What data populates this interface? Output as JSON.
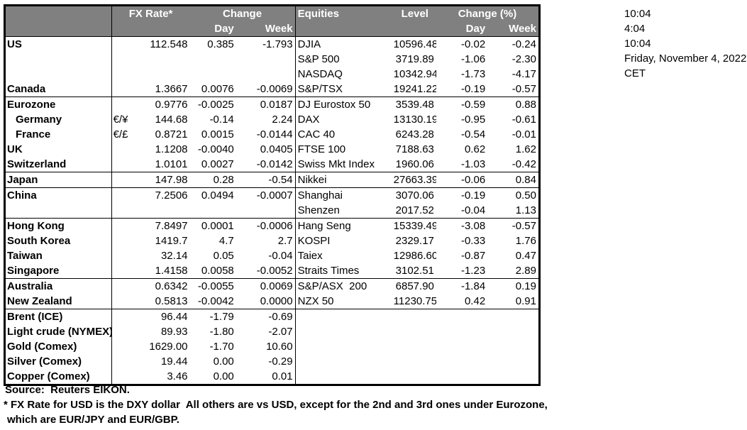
{
  "colors": {
    "header_bg": "#808080",
    "header_text": "#ffffff",
    "border": "#000000",
    "body_text": "#000000",
    "page_bg": "#ffffff"
  },
  "table": {
    "header": {
      "fx_rate": "FX Rate*",
      "change": "Change",
      "day": "Day",
      "week": "Week",
      "equities": "Equities",
      "level": "Level",
      "change_pct": "Change (%)",
      "eq_day": "Day",
      "eq_week": "Week"
    },
    "rows": [
      {
        "name": "US",
        "pair": "",
        "rate": "112.548",
        "day": "0.385",
        "week": "-1.793",
        "eq": "DJIA",
        "level": "10596.48",
        "eq_day": "-0.02",
        "eq_week": "-0.24"
      },
      {
        "name": "",
        "pair": "",
        "rate": "",
        "day": "",
        "week": "",
        "eq": "S&P 500",
        "level": "3719.89",
        "eq_day": "-1.06",
        "eq_week": "-2.30"
      },
      {
        "name": "",
        "pair": "",
        "rate": "",
        "day": "",
        "week": "",
        "eq": "NASDAQ",
        "level": "10342.94",
        "eq_day": "-1.73",
        "eq_week": "-4.17"
      },
      {
        "name": "Canada",
        "pair": "",
        "rate": "1.3667",
        "day": "0.0076",
        "week": "-0.0069",
        "eq": "S&P/TSX",
        "level": "19241.22",
        "eq_day": "-0.19",
        "eq_week": "-0.57",
        "sep": true
      },
      {
        "name": "Eurozone",
        "pair": "",
        "rate": "0.9776",
        "day": "-0.0025",
        "week": "0.0187",
        "eq": "DJ Eurostox 50",
        "level": "3539.48",
        "eq_day": "-0.59",
        "eq_week": "0.88"
      },
      {
        "name": "Germany",
        "indent": true,
        "pair": "€/¥",
        "rate": "144.68",
        "day": "-0.14",
        "week": "2.24",
        "eq": "DAX",
        "level": "13130.19",
        "eq_day": "-0.95",
        "eq_week": "-0.61"
      },
      {
        "name": "France",
        "indent": true,
        "pair": "€/£",
        "rate": "0.8721",
        "day": "0.0015",
        "week": "-0.0144",
        "eq": "CAC 40",
        "level": "6243.28",
        "eq_day": "-0.54",
        "eq_week": "-0.01"
      },
      {
        "name": "UK",
        "pair": "",
        "rate": "1.1208",
        "day": "-0.0040",
        "week": "0.0405",
        "eq": "FTSE 100",
        "level": "7188.63",
        "eq_day": "0.62",
        "eq_week": "1.62"
      },
      {
        "name": "Switzerland",
        "pair": "",
        "rate": "1.0101",
        "day": "0.0027",
        "week": "-0.0142",
        "eq": "Swiss Mkt Index",
        "level": "1960.06",
        "eq_day": "-1.03",
        "eq_week": "-0.42",
        "sep": true
      },
      {
        "name": "Japan",
        "pair": "",
        "rate": "147.98",
        "day": "0.28",
        "week": "-0.54",
        "eq": "Nikkei",
        "level": "27663.39",
        "eq_day": "-0.06",
        "eq_week": "0.84",
        "sep": true
      },
      {
        "name": "China",
        "pair": "",
        "rate": "7.2506",
        "day": "0.0494",
        "week": "-0.0007",
        "eq": "Shanghai",
        "level": "3070.06",
        "eq_day": "-0.19",
        "eq_week": "0.50"
      },
      {
        "name": "",
        "pair": "",
        "rate": "",
        "day": "",
        "week": "",
        "eq": "Shenzen",
        "level": "2017.52",
        "eq_day": "-0.04",
        "eq_week": "1.13",
        "sep": true
      },
      {
        "name": "Hong Kong",
        "pair": "",
        "rate": "7.8497",
        "day": "0.0001",
        "week": "-0.0006",
        "eq": "Hang Seng",
        "level": "15339.49",
        "eq_day": "-3.08",
        "eq_week": "-0.57"
      },
      {
        "name": "South Korea",
        "pair": "",
        "rate": "1419.7",
        "day": "4.7",
        "week": "2.7",
        "eq": "KOSPI",
        "level": "2329.17",
        "eq_day": "-0.33",
        "eq_week": "1.76"
      },
      {
        "name": "Taiwan",
        "pair": "",
        "rate": "32.14",
        "day": "0.05",
        "week": "-0.04",
        "eq": "Taiex",
        "level": "12986.60",
        "eq_day": "-0.87",
        "eq_week": "0.47"
      },
      {
        "name": "Singapore",
        "pair": "",
        "rate": "1.4158",
        "day": "0.0058",
        "week": "-0.0052",
        "eq": "Straits Times",
        "level": "3102.51",
        "eq_day": "-1.23",
        "eq_week": "2.89",
        "sep": true
      },
      {
        "name": "Australia",
        "pair": "",
        "rate": "0.6342",
        "day": "-0.0055",
        "week": "0.0069",
        "eq": "S&P/ASX  200",
        "level": "6857.90",
        "eq_day": "-1.84",
        "eq_week": "0.19"
      },
      {
        "name": "New Zealand",
        "pair": "",
        "rate": "0.5813",
        "day": "-0.0042",
        "week": "0.0000",
        "eq": "NZX 50",
        "level": "11230.75",
        "eq_day": "0.42",
        "eq_week": "0.91",
        "sep": true
      },
      {
        "name": "Brent (ICE)",
        "pair": "",
        "rate": "96.44",
        "day": "-1.79",
        "week": "-0.69",
        "eq": "",
        "level": "",
        "eq_day": "",
        "eq_week": ""
      },
      {
        "name": "Light crude (NYMEX)",
        "pair": "",
        "rate": "89.93",
        "day": "-1.80",
        "week": "-2.07",
        "eq": "",
        "level": "",
        "eq_day": "",
        "eq_week": ""
      },
      {
        "name": "Gold (Comex)",
        "pair": "",
        "rate": "1629.00",
        "day": "-1.70",
        "week": "10.60",
        "eq": "",
        "level": "",
        "eq_day": "",
        "eq_week": ""
      },
      {
        "name": "Silver (Comex)",
        "pair": "",
        "rate": "19.44",
        "day": "0.00",
        "week": "-0.29",
        "eq": "",
        "level": "",
        "eq_day": "",
        "eq_week": ""
      },
      {
        "name": "Copper (Comex)",
        "pair": "",
        "rate": "3.46",
        "day": "0.00",
        "week": "0.01",
        "eq": "",
        "level": "",
        "eq_day": "",
        "eq_week": ""
      }
    ]
  },
  "timestamps": {
    "lines": [
      "10:04",
      "4:04",
      "10:04",
      "Friday, November 4, 2022",
      "CET"
    ]
  },
  "footer": {
    "source": "Source:  Reuters EIKON.",
    "note1": "* FX Rate for USD is the DXY dollar  All others are vs USD, except for the 2nd and 3rd ones under Eurozone,",
    "note2": "which are EUR/JPY and EUR/GBP."
  }
}
